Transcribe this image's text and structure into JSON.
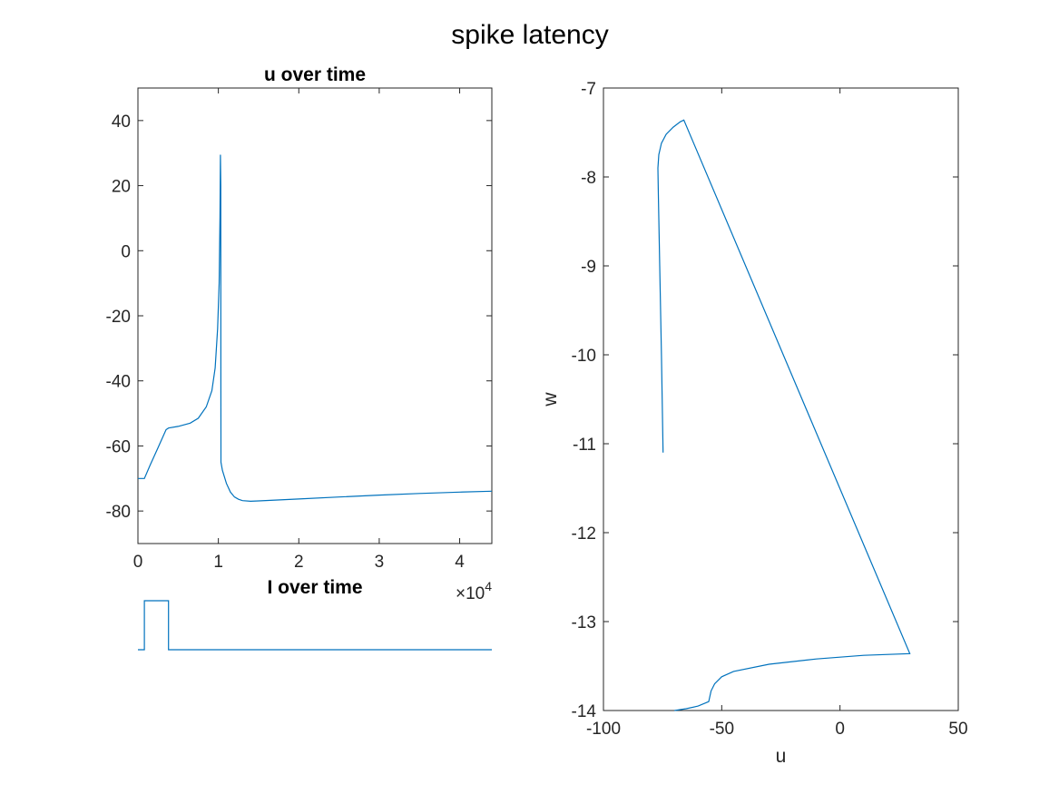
{
  "figure": {
    "suptitle": "spike latency"
  },
  "chart_data": [
    {
      "type": "line",
      "title": "u over time",
      "xlabel": "",
      "ylabel": "",
      "xlim": [
        0,
        44000
      ],
      "ylim": [
        -90,
        50
      ],
      "xticks": [
        0,
        10000,
        20000,
        30000,
        40000
      ],
      "xtick_labels": [
        "0",
        "1",
        "2",
        "3",
        "4"
      ],
      "x_exponent_label": "×10",
      "x_exponent": "4",
      "yticks": [
        -80,
        -60,
        -40,
        -20,
        0,
        20,
        40
      ],
      "ytick_labels": [
        "-80",
        "-60",
        "-40",
        "-20",
        "0",
        "20",
        "40"
      ],
      "color": "#0072BD",
      "series": [
        {
          "x": [
            0,
            800,
            1500,
            2500,
            3500,
            3800,
            5000,
            6500,
            7500,
            8500,
            9200,
            9600,
            9900,
            10100,
            10200,
            10250,
            10300,
            10310,
            10320,
            10500,
            11000,
            11500,
            12000,
            12500,
            13000,
            14000,
            15000,
            20000,
            25000,
            30000,
            35000,
            40000,
            44000
          ],
          "y": [
            -70,
            -70,
            -66,
            -60.5,
            -55,
            -54.5,
            -54,
            -53,
            -51.5,
            -48,
            -43,
            -36,
            -24,
            -10,
            10,
            29.5,
            20,
            -40,
            -65,
            -67.5,
            -71.5,
            -74.2,
            -75.7,
            -76.4,
            -76.8,
            -77.0,
            -76.9,
            -76.3,
            -75.7,
            -75.1,
            -74.6,
            -74.2,
            -73.9
          ]
        }
      ]
    },
    {
      "type": "line",
      "title": "I over time",
      "xlabel": "",
      "ylabel": "",
      "xlim": [
        0,
        44000
      ],
      "ylim": [
        0,
        1
      ],
      "axis": "off",
      "color": "#0072BD",
      "series": [
        {
          "x": [
            0,
            800,
            800,
            3800,
            3800,
            44000
          ],
          "y": [
            0,
            0,
            1,
            1,
            0,
            0
          ]
        }
      ]
    },
    {
      "type": "line",
      "title": "",
      "xlabel": "u",
      "ylabel": "w",
      "xlim": [
        -100,
        50
      ],
      "ylim": [
        -14,
        -7
      ],
      "xticks": [
        -100,
        -50,
        0,
        50
      ],
      "xtick_labels": [
        "-100",
        "-50",
        "0",
        "50"
      ],
      "yticks": [
        -14,
        -13,
        -12,
        -11,
        -10,
        -9,
        -8,
        -7
      ],
      "ytick_labels": [
        "-14",
        "-13",
        "-12",
        "-11",
        "-10",
        "-9",
        "-8",
        "-7"
      ],
      "color": "#0072BD",
      "series": [
        {
          "x": [
            -74.8,
            -75.5,
            -76.2,
            -76.8,
            -77.0,
            -76.6,
            -75.5,
            -73.5,
            -70.5,
            -67.5,
            -66.0,
            29.5,
            10,
            -10,
            -30,
            -45,
            -50,
            -53,
            -54.5,
            -55.5,
            -60,
            -65,
            -70
          ],
          "y": [
            -11.1,
            -10.0,
            -9.0,
            -8.2,
            -7.9,
            -7.75,
            -7.62,
            -7.52,
            -7.44,
            -7.38,
            -7.36,
            -13.36,
            -13.38,
            -13.42,
            -13.48,
            -13.56,
            -13.62,
            -13.7,
            -13.78,
            -13.9,
            -13.95,
            -13.98,
            -14.0
          ]
        }
      ]
    }
  ]
}
